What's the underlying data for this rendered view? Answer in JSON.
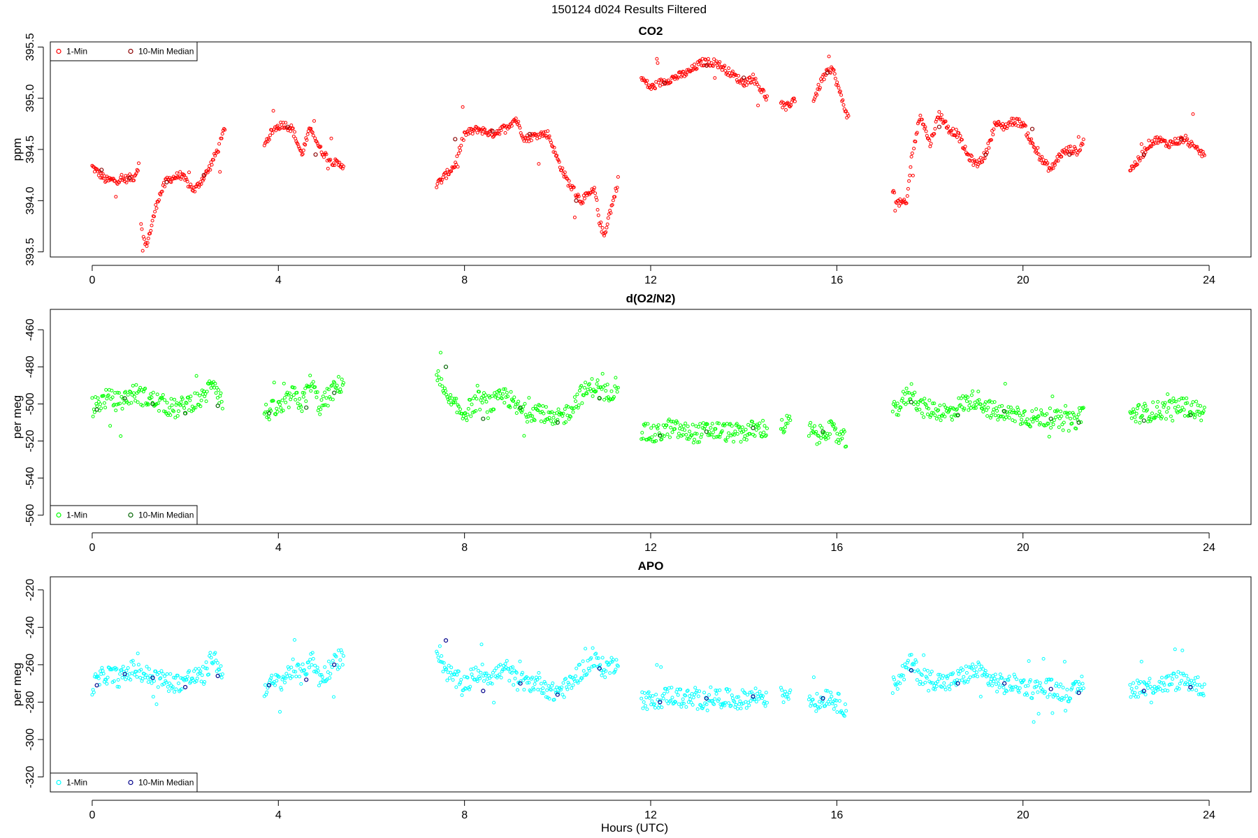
{
  "figure": {
    "title": "150124   d024   Results Filtered",
    "xlabel": "Hours (UTC)"
  },
  "chart_data": [
    {
      "type": "scatter",
      "title": "CO2",
      "xlabel": "",
      "ylabel": "ppm",
      "xlim": [
        -0.9,
        24.9
      ],
      "ylim": [
        393.45,
        395.55
      ],
      "xticks": [
        0,
        4,
        8,
        12,
        16,
        20,
        24
      ],
      "yticks": [
        393.5,
        394.0,
        394.5,
        395.0,
        395.5
      ],
      "ytick_labels": [
        "393.5",
        "394.0",
        "394.5",
        "395.0",
        "395.5"
      ],
      "legend": {
        "position": "top-left",
        "entries": [
          "1-Min",
          "10-Min Median"
        ]
      },
      "series": [
        {
          "name": "1-Min",
          "color": "#ff0000",
          "shape": "circle",
          "segments": [
            {
              "x": [
                0.0,
                0.3,
                0.6,
                0.9,
                1.0
              ],
              "y": [
                394.33,
                394.2,
                394.2,
                394.23,
                394.35
              ]
            },
            {
              "x": [
                1.05,
                1.15,
                1.25,
                1.4,
                1.6,
                1.9,
                2.2,
                2.5,
                2.75,
                2.85
              ],
              "y": [
                393.75,
                393.55,
                393.7,
                394.0,
                394.2,
                394.25,
                394.1,
                394.3,
                394.55,
                394.72
              ]
            },
            {
              "x": [
                3.7,
                3.9,
                4.1,
                4.3,
                4.5,
                4.7,
                4.9,
                5.1,
                5.3,
                5.4
              ],
              "y": [
                394.55,
                394.7,
                394.75,
                394.7,
                394.45,
                394.72,
                394.5,
                394.4,
                394.35,
                394.35
              ]
            },
            {
              "x": [
                7.4,
                7.6,
                7.8,
                8.0,
                8.3,
                8.6,
                8.9,
                9.1,
                9.3,
                9.6,
                9.8,
                10.0,
                10.2,
                10.5,
                10.8,
                10.9,
                11.0,
                11.1,
                11.2,
                11.3
              ],
              "y": [
                394.15,
                394.25,
                394.35,
                394.65,
                394.7,
                394.65,
                394.72,
                394.8,
                394.6,
                394.65,
                394.65,
                394.4,
                394.2,
                394.0,
                394.1,
                393.8,
                393.65,
                393.85,
                394.0,
                394.2
              ]
            },
            {
              "x": [
                11.8,
                12.0,
                12.2,
                12.5,
                12.8,
                13.1,
                13.4,
                13.7,
                14.0,
                14.2,
                14.5
              ],
              "y": [
                395.2,
                395.1,
                395.15,
                395.2,
                395.25,
                395.35,
                395.35,
                395.25,
                395.15,
                395.2,
                395.0
              ]
            },
            {
              "x": [
                14.8,
                14.9,
                15.1
              ],
              "y": [
                394.95,
                394.9,
                395.0
              ]
            },
            {
              "x": [
                15.5,
                15.7,
                15.9,
                16.1,
                16.25
              ],
              "y": [
                394.98,
                395.2,
                395.3,
                395.0,
                394.8
              ]
            },
            {
              "x": [
                17.2,
                17.3,
                17.5,
                17.6,
                17.8,
                18.0,
                18.2,
                18.4,
                18.6,
                18.8,
                19.0,
                19.2,
                19.4,
                19.6,
                19.8,
                20.0,
                20.2,
                20.4,
                20.6,
                20.8,
                21.0,
                21.2,
                21.3
              ],
              "y": [
                394.1,
                393.98,
                393.97,
                394.4,
                394.85,
                394.55,
                394.85,
                394.7,
                394.65,
                394.45,
                394.35,
                394.45,
                394.75,
                394.72,
                394.78,
                394.75,
                394.55,
                394.4,
                394.3,
                394.45,
                394.5,
                394.48,
                394.6
              ]
            },
            {
              "x": [
                22.3,
                22.5,
                22.7,
                22.9,
                23.1,
                23.3,
                23.5,
                23.7,
                23.9
              ],
              "y": [
                394.3,
                394.4,
                394.55,
                394.6,
                394.55,
                394.58,
                394.6,
                394.5,
                394.45
              ]
            }
          ]
        },
        {
          "name": "10-Min Median",
          "color": "#8b0000",
          "shape": "circle",
          "points": {
            "x": [
              0.2,
              0.8,
              1.6,
              2.4,
              4.2,
              4.8,
              7.8,
              8.6,
              9.4,
              10.4,
              12.3,
              13.2,
              14.0,
              15.8,
              18.2,
              19.2,
              20.2,
              21.0,
              22.6,
              23.4
            ],
            "y": [
              394.3,
              394.22,
              394.18,
              394.25,
              394.72,
              394.45,
              394.6,
              394.68,
              394.65,
              394.0,
              395.15,
              395.32,
              395.2,
              395.25,
              394.72,
              394.45,
              394.7,
              394.45,
              394.45,
              394.6
            ]
          }
        }
      ]
    },
    {
      "type": "scatter",
      "title": "d(O2/N2)",
      "xlabel": "",
      "ylabel": "per meg",
      "xlim": [
        -0.9,
        24.9
      ],
      "ylim": [
        -565,
        -449
      ],
      "xticks": [
        0,
        4,
        8,
        12,
        16,
        20,
        24
      ],
      "yticks": [
        -560,
        -540,
        -520,
        -500,
        -480,
        -460
      ],
      "ytick_labels": [
        "-560",
        "-540",
        "-520",
        "-500",
        "-480",
        "-460"
      ],
      "legend": {
        "position": "bottom-left",
        "entries": [
          "1-Min",
          "10-Min Median"
        ]
      },
      "series": [
        {
          "name": "1-Min",
          "color": "#00ff00",
          "shape": "circle",
          "segments": [
            {
              "x": [
                0.0,
                0.3,
                0.6,
                0.9,
                1.2,
                1.5,
                1.8,
                2.1,
                2.4,
                2.6,
                2.8
              ],
              "y": [
                -502,
                -497,
                -499,
                -494,
                -497,
                -500,
                -503,
                -499,
                -497,
                -486,
                -500
              ]
            },
            {
              "x": [
                3.7,
                3.9,
                4.1,
                4.3,
                4.5,
                4.7,
                4.9,
                5.1,
                5.3,
                5.4
              ],
              "y": [
                -505,
                -503,
                -502,
                -495,
                -500,
                -488,
                -502,
                -495,
                -490,
                -488
              ]
            },
            {
              "x": [
                7.4,
                7.6,
                7.8,
                8.0,
                8.3,
                8.6,
                8.9,
                9.1,
                9.3,
                9.6,
                9.9,
                10.2,
                10.5,
                10.8,
                11.0,
                11.2,
                11.3
              ],
              "y": [
                -484,
                -497,
                -502,
                -505,
                -498,
                -500,
                -495,
                -502,
                -505,
                -503,
                -510,
                -505,
                -495,
                -490,
                -495,
                -492,
                -488
              ]
            },
            {
              "x": [
                11.8,
                12.1,
                12.4,
                12.7,
                13.0,
                13.3,
                13.6,
                13.9,
                14.2,
                14.5
              ],
              "y": [
                -515,
                -517,
                -513,
                -515,
                -516,
                -514,
                -515,
                -516,
                -514,
                -513
              ]
            },
            {
              "x": [
                14.8,
                15.0
              ],
              "y": [
                -513,
                -510
              ]
            },
            {
              "x": [
                15.4,
                15.6,
                15.8,
                16.0,
                16.2
              ],
              "y": [
                -514,
                -518,
                -513,
                -517,
                -520
              ]
            },
            {
              "x": [
                17.2,
                17.4,
                17.6,
                17.8,
                18.1,
                18.4,
                18.7,
                19.0,
                19.3,
                19.6,
                19.9,
                20.2,
                20.5,
                20.8,
                21.1,
                21.3
              ],
              "y": [
                -505,
                -499,
                -493,
                -502,
                -503,
                -505,
                -500,
                -497,
                -503,
                -506,
                -505,
                -508,
                -507,
                -509,
                -510,
                -503
              ]
            },
            {
              "x": [
                22.3,
                22.5,
                22.8,
                23.1,
                23.4,
                23.7,
                23.9
              ],
              "y": [
                -506,
                -505,
                -504,
                -503,
                -501,
                -503,
                -506
              ]
            }
          ]
        },
        {
          "name": "10-Min Median",
          "color": "#006400",
          "shape": "circle",
          "points": {
            "x": [
              0.1,
              0.7,
              1.3,
              2.0,
              2.7,
              3.8,
              4.6,
              5.2,
              7.6,
              8.4,
              9.2,
              10.0,
              10.9,
              12.2,
              13.2,
              14.2,
              15.7,
              17.6,
              18.6,
              19.6,
              20.6,
              21.2,
              22.6,
              23.6
            ],
            "y": [
              -503,
              -497,
              -500,
              -505,
              -501,
              -505,
              -502,
              -494,
              -480,
              -508,
              -502,
              -510,
              -497,
              -517,
              -515,
              -513,
              -515,
              -499,
              -506,
              -504,
              -508,
              -510,
              -509,
              -506
            ]
          }
        }
      ]
    },
    {
      "type": "scatter",
      "title": "APO",
      "xlabel": "",
      "ylabel": "per meg",
      "xlim": [
        -0.9,
        24.9
      ],
      "ylim": [
        -328,
        -213
      ],
      "xticks": [
        0,
        4,
        8,
        12,
        16,
        20,
        24
      ],
      "yticks": [
        -320,
        -300,
        -280,
        -260,
        -240,
        -220
      ],
      "ytick_labels": [
        "-320",
        "-300",
        "-280",
        "-260",
        "-240",
        "-220"
      ],
      "legend": {
        "position": "bottom-left",
        "entries": [
          "1-Min",
          "10-Min Median"
        ]
      },
      "series": [
        {
          "name": "1-Min",
          "color": "#00ffff",
          "shape": "circle",
          "segments": [
            {
              "x": [
                0.0,
                0.3,
                0.6,
                0.9,
                1.2,
                1.5,
                1.8,
                2.1,
                2.4,
                2.6,
                2.8
              ],
              "y": [
                -271,
                -265,
                -267,
                -262,
                -266,
                -268,
                -270,
                -267,
                -266,
                -255,
                -266
              ]
            },
            {
              "x": [
                3.7,
                3.9,
                4.1,
                4.3,
                4.5,
                4.7,
                4.9,
                5.1,
                5.3,
                5.4
              ],
              "y": [
                -272,
                -270,
                -268,
                -262,
                -266,
                -256,
                -268,
                -262,
                -257,
                -255
              ]
            },
            {
              "x": [
                7.4,
                7.6,
                7.8,
                8.0,
                8.3,
                8.6,
                8.9,
                9.1,
                9.3,
                9.6,
                9.9,
                10.2,
                10.5,
                10.8,
                11.0,
                11.2,
                11.3
              ],
              "y": [
                -250,
                -263,
                -268,
                -270,
                -264,
                -266,
                -262,
                -268,
                -270,
                -269,
                -275,
                -272,
                -263,
                -258,
                -262,
                -260,
                -256
              ]
            },
            {
              "x": [
                11.8,
                12.1,
                12.4,
                12.7,
                13.0,
                13.3,
                13.6,
                13.9,
                14.2,
                14.5
              ],
              "y": [
                -278,
                -280,
                -276,
                -278,
                -279,
                -277,
                -278,
                -279,
                -277,
                -276
              ]
            },
            {
              "x": [
                14.8,
                15.0
              ],
              "y": [
                -277,
                -274
              ]
            },
            {
              "x": [
                15.4,
                15.6,
                15.8,
                16.0,
                16.2
              ],
              "y": [
                -277,
                -281,
                -276,
                -280,
                -283
              ]
            },
            {
              "x": [
                17.2,
                17.4,
                17.6,
                17.8,
                18.1,
                18.4,
                18.7,
                19.0,
                19.3,
                19.6,
                19.9,
                20.2,
                20.5,
                20.8,
                21.1,
                21.3
              ],
              "y": [
                -272,
                -265,
                -259,
                -266,
                -268,
                -270,
                -266,
                -263,
                -268,
                -271,
                -270,
                -273,
                -272,
                -274,
                -275,
                -269
              ]
            },
            {
              "x": [
                22.3,
                22.5,
                22.8,
                23.1,
                23.4,
                23.7,
                23.9
              ],
              "y": [
                -273,
                -272,
                -271,
                -270,
                -268,
                -270,
                -273
              ]
            }
          ]
        },
        {
          "name": "10-Min Median",
          "color": "#00008b",
          "shape": "circle",
          "points": {
            "x": [
              0.1,
              0.7,
              1.3,
              2.0,
              2.7,
              3.8,
              4.6,
              5.2,
              7.6,
              8.4,
              9.2,
              10.0,
              10.9,
              12.2,
              13.2,
              14.2,
              15.7,
              17.6,
              18.6,
              19.6,
              20.6,
              21.2,
              22.6,
              23.6
            ],
            "y": [
              -271,
              -265,
              -267,
              -272,
              -266,
              -271,
              -268,
              -260,
              -247,
              -274,
              -270,
              -276,
              -262,
              -280,
              -278,
              -277,
              -278,
              -263,
              -270,
              -270,
              -273,
              -275,
              -274,
              -272
            ]
          }
        }
      ]
    }
  ]
}
